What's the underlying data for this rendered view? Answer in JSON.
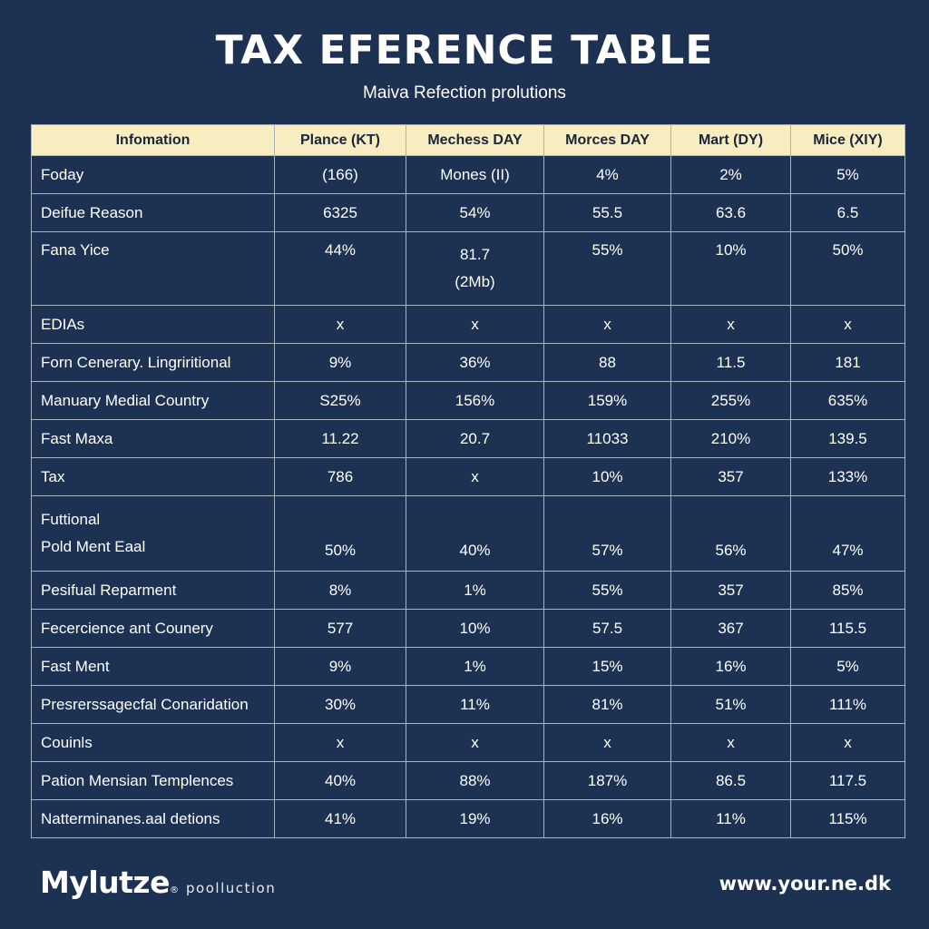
{
  "header": {
    "title": "TAX EFERENCE TABLE",
    "subtitle": "Maiva Refection prolutions"
  },
  "table": {
    "columns": [
      "Infomation",
      "Plance (KT)",
      "Mechess DAY",
      "Morces DAY",
      "Mart (DY)",
      "Mice (XIY)"
    ],
    "rows": [
      {
        "label": [
          "Foday"
        ],
        "values": [
          [
            "(166)"
          ],
          [
            "Mones (II)"
          ],
          [
            "4%"
          ],
          [
            "2%"
          ],
          [
            "5%"
          ]
        ]
      },
      {
        "label": [
          "Deifue Reason"
        ],
        "values": [
          [
            "6325"
          ],
          [
            "54%"
          ],
          [
            "55.5"
          ],
          [
            "63.6"
          ],
          [
            "6.5"
          ]
        ]
      },
      {
        "label": [
          "Fana Yice"
        ],
        "values": [
          [
            "44%"
          ],
          [
            "81.7",
            "(2Mb)"
          ],
          [
            "55%"
          ],
          [
            "10%"
          ],
          [
            "50%"
          ]
        ]
      },
      {
        "label": [
          "EDIAs"
        ],
        "values": [
          [
            "x"
          ],
          [
            "x"
          ],
          [
            "x"
          ],
          [
            "x"
          ],
          [
            "x"
          ]
        ]
      },
      {
        "label": [
          "Forn Cenerary. Lingriritional"
        ],
        "values": [
          [
            "9%"
          ],
          [
            "36%"
          ],
          [
            "88"
          ],
          [
            "11.5"
          ],
          [
            "181"
          ]
        ]
      },
      {
        "label": [
          "Manuary Medial Country"
        ],
        "values": [
          [
            "S25%"
          ],
          [
            "156%"
          ],
          [
            "159%"
          ],
          [
            "255%"
          ],
          [
            "635%"
          ]
        ]
      },
      {
        "label": [
          "Fast Maxa"
        ],
        "values": [
          [
            "11.22"
          ],
          [
            "20.7"
          ],
          [
            "11033"
          ],
          [
            "210%"
          ],
          [
            "139.5"
          ]
        ]
      },
      {
        "label": [
          "Tax"
        ],
        "values": [
          [
            "786"
          ],
          [
            "x"
          ],
          [
            "10%"
          ],
          [
            "357"
          ],
          [
            "133%"
          ]
        ]
      },
      {
        "label": [
          "Futtional",
          "Pold Ment Eaal"
        ],
        "values": [
          [
            "50%"
          ],
          [
            "40%"
          ],
          [
            "57%"
          ],
          [
            "56%"
          ],
          [
            "47%"
          ]
        ]
      },
      {
        "label": [
          "Pesifual Reparment"
        ],
        "values": [
          [
            "8%"
          ],
          [
            "1%"
          ],
          [
            "55%"
          ],
          [
            "357"
          ],
          [
            "85%"
          ]
        ]
      },
      {
        "label": [
          "Fecercience ant Counery"
        ],
        "values": [
          [
            "577"
          ],
          [
            "10%"
          ],
          [
            "57.5"
          ],
          [
            "367"
          ],
          [
            "115.5"
          ]
        ]
      },
      {
        "label": [
          "Fast Ment"
        ],
        "values": [
          [
            "9%"
          ],
          [
            "1%"
          ],
          [
            "15%"
          ],
          [
            "16%"
          ],
          [
            "5%"
          ]
        ]
      },
      {
        "label": [
          "Presrerssagecfal Conaridation"
        ],
        "values": [
          [
            "30%"
          ],
          [
            "11%"
          ],
          [
            "81%"
          ],
          [
            "51%"
          ],
          [
            "111%"
          ]
        ]
      },
      {
        "label": [
          "Couinls"
        ],
        "values": [
          [
            "x"
          ],
          [
            "x"
          ],
          [
            "x"
          ],
          [
            "x"
          ],
          [
            "x"
          ]
        ]
      },
      {
        "label": [
          "Pation Mensian Templences"
        ],
        "values": [
          [
            "40%"
          ],
          [
            "88%"
          ],
          [
            "187%"
          ],
          [
            "86.5"
          ],
          [
            "117.5"
          ]
        ]
      },
      {
        "label": [
          "Natterminanes.aal detions"
        ],
        "values": [
          [
            "41%"
          ],
          [
            "19%"
          ],
          [
            "16%"
          ],
          [
            "11%"
          ],
          [
            "115%"
          ]
        ]
      }
    ]
  },
  "footer": {
    "brand": "Mylutze",
    "brand_mark": "®",
    "brand_tag": "poolluction",
    "url": "www.your.ne.dk"
  },
  "colors": {
    "background": "#1d3152",
    "header_row": "#f8ecc1",
    "grid": "#aab3c2"
  }
}
